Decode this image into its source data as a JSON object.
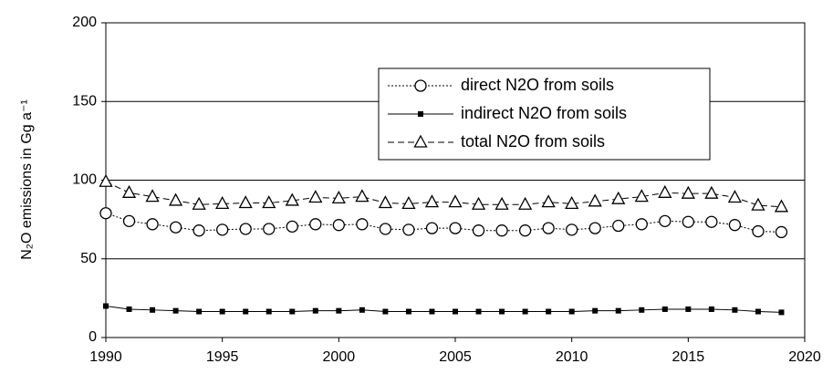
{
  "chart_data": {
    "type": "line",
    "y_label": "N₂O emissions in Gg a⁻¹",
    "x": [
      1990,
      1991,
      1992,
      1993,
      1994,
      1995,
      1996,
      1997,
      1998,
      1999,
      2000,
      2001,
      2002,
      2003,
      2004,
      2005,
      2006,
      2007,
      2008,
      2009,
      2010,
      2011,
      2012,
      2013,
      2014,
      2015,
      2016,
      2017,
      2018,
      2019
    ],
    "series": [
      {
        "name": "direct N2O from soils",
        "color": "#000000",
        "line_style": "dotted",
        "marker": "circle",
        "values": [
          79,
          74,
          72,
          70,
          68,
          68.5,
          69,
          69,
          70.5,
          72,
          71.5,
          72,
          69,
          68.5,
          69.5,
          69.5,
          68,
          68,
          68,
          69.5,
          68.5,
          69.5,
          71,
          72,
          74,
          73.5,
          73.5,
          71.5,
          67.5,
          67
        ]
      },
      {
        "name": "indirect N2O from soils",
        "color": "#000000",
        "line_style": "solid",
        "marker": "square",
        "values": [
          20,
          18,
          17.5,
          17,
          16.5,
          16.5,
          16.5,
          16.5,
          16.5,
          17,
          17,
          17.5,
          16.5,
          16.5,
          16.5,
          16.5,
          16.5,
          16.5,
          16.5,
          16.5,
          16.5,
          17,
          17,
          17.5,
          18,
          18,
          18,
          17.5,
          16.5,
          16
        ]
      },
      {
        "name": "total N2O from soils",
        "color": "#000000",
        "line_style": "dashed",
        "marker": "triangle",
        "values": [
          99,
          92,
          89.5,
          87,
          84.5,
          85,
          85.5,
          85.5,
          87,
          89,
          88.5,
          89.5,
          85.5,
          85,
          86,
          86,
          84.5,
          84.5,
          84.5,
          86,
          85,
          86.5,
          88,
          89.5,
          92,
          91.5,
          91.5,
          89,
          84,
          83
        ]
      }
    ],
    "xlim": [
      1990,
      2020
    ],
    "xticks": [
      1990,
      1995,
      2000,
      2005,
      2010,
      2015,
      2020
    ],
    "ylim": [
      0,
      200
    ],
    "yticks": [
      0,
      50,
      100,
      150,
      200
    ],
    "grid": true,
    "legend": "upper right"
  }
}
